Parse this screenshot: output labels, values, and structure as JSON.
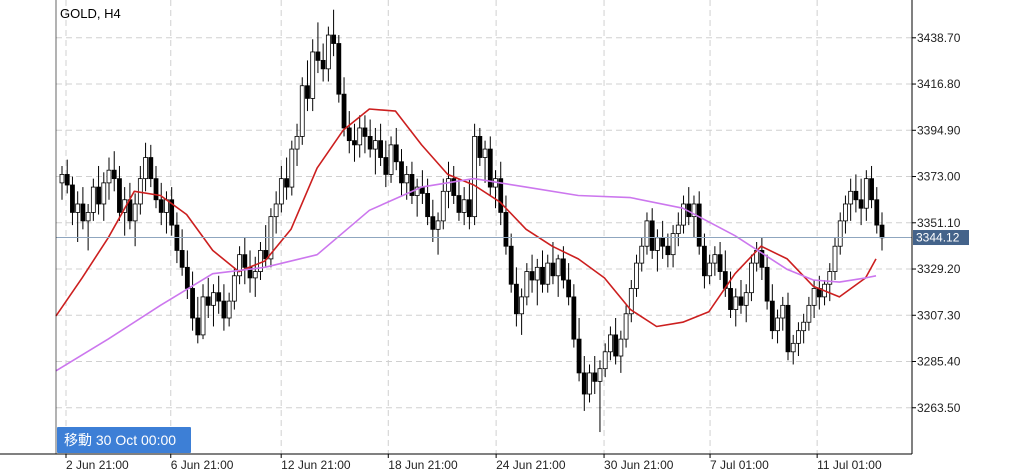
{
  "symbol_label": "GOLD, H4",
  "goto_button": "移動 30 Oct 00:00",
  "colors": {
    "bull": "#ffffff",
    "bear": "#000000",
    "ma_fast": "#cc1f1f",
    "ma_slow": "#cc77ee",
    "grid": "#d0d0d0",
    "current_line": "#8fa6bf",
    "price_badge": "#44638a",
    "goto_button": "#3d7fd6"
  },
  "chart_data": {
    "type": "candlestick",
    "title": "GOLD, H4",
    "grid": true,
    "ylim": [
      3241.6,
      3456.6
    ],
    "y_ticks": [
      "3438.70",
      "3416.80",
      "3394.90",
      "3373.00",
      "3351.10",
      "3329.20",
      "3307.30",
      "3285.40",
      "3263.50"
    ],
    "x_ticks": [
      "2 Jun 21:00",
      "6 Jun 21:00",
      "12 Jun 21:00",
      "18 Jun 21:00",
      "24 Jun 21:00",
      "30 Jun 21:00",
      "7 Jul 01:00",
      "11 Jul 01:00"
    ],
    "current_price": "3344.12",
    "candles": [
      [
        3370,
        3378,
        3362,
        3374
      ],
      [
        3374,
        3381,
        3365,
        3369
      ],
      [
        3369,
        3373,
        3350,
        3356
      ],
      [
        3356,
        3366,
        3342,
        3360
      ],
      [
        3360,
        3368,
        3348,
        3352
      ],
      [
        3352,
        3360,
        3338,
        3356
      ],
      [
        3356,
        3372,
        3352,
        3368
      ],
      [
        3368,
        3378,
        3355,
        3360
      ],
      [
        3360,
        3375,
        3352,
        3370
      ],
      [
        3370,
        3382,
        3362,
        3376
      ],
      [
        3376,
        3385,
        3366,
        3372
      ],
      [
        3372,
        3378,
        3352,
        3356
      ],
      [
        3356,
        3368,
        3345,
        3362
      ],
      [
        3362,
        3370,
        3348,
        3352
      ],
      [
        3352,
        3365,
        3340,
        3360
      ],
      [
        3360,
        3378,
        3355,
        3372
      ],
      [
        3372,
        3389,
        3366,
        3382
      ],
      [
        3382,
        3388,
        3368,
        3372
      ],
      [
        3372,
        3378,
        3358,
        3362
      ],
      [
        3362,
        3370,
        3350,
        3356
      ],
      [
        3356,
        3366,
        3346,
        3362
      ],
      [
        3362,
        3368,
        3345,
        3350
      ],
      [
        3350,
        3356,
        3332,
        3338
      ],
      [
        3338,
        3348,
        3326,
        3330
      ],
      [
        3330,
        3338,
        3315,
        3320
      ],
      [
        3320,
        3328,
        3300,
        3306
      ],
      [
        3306,
        3316,
        3294,
        3298
      ],
      [
        3298,
        3322,
        3296,
        3316
      ],
      [
        3316,
        3325,
        3306,
        3312
      ],
      [
        3312,
        3322,
        3302,
        3318
      ],
      [
        3318,
        3326,
        3308,
        3314
      ],
      [
        3314,
        3322,
        3300,
        3306
      ],
      [
        3306,
        3318,
        3302,
        3314
      ],
      [
        3314,
        3330,
        3310,
        3326
      ],
      [
        3326,
        3340,
        3322,
        3336
      ],
      [
        3336,
        3344,
        3322,
        3330
      ],
      [
        3330,
        3338,
        3318,
        3325
      ],
      [
        3325,
        3335,
        3316,
        3328
      ],
      [
        3328,
        3342,
        3324,
        3338
      ],
      [
        3338,
        3350,
        3330,
        3334
      ],
      [
        3334,
        3358,
        3330,
        3354
      ],
      [
        3354,
        3366,
        3346,
        3360
      ],
      [
        3360,
        3378,
        3356,
        3372
      ],
      [
        3372,
        3382,
        3362,
        3368
      ],
      [
        3368,
        3390,
        3364,
        3386
      ],
      [
        3386,
        3398,
        3378,
        3392
      ],
      [
        3392,
        3420,
        3388,
        3416
      ],
      [
        3416,
        3428,
        3404,
        3410
      ],
      [
        3410,
        3438,
        3404,
        3432
      ],
      [
        3432,
        3446,
        3422,
        3428
      ],
      [
        3428,
        3436,
        3418,
        3424
      ],
      [
        3424,
        3444,
        3418,
        3440
      ],
      [
        3440,
        3452,
        3430,
        3436
      ],
      [
        3436,
        3440,
        3408,
        3412
      ],
      [
        3412,
        3420,
        3392,
        3396
      ],
      [
        3396,
        3404,
        3384,
        3390
      ],
      [
        3390,
        3398,
        3380,
        3388
      ],
      [
        3388,
        3402,
        3382,
        3396
      ],
      [
        3396,
        3402,
        3384,
        3392
      ],
      [
        3392,
        3400,
        3382,
        3386
      ],
      [
        3386,
        3396,
        3374,
        3390
      ],
      [
        3390,
        3398,
        3378,
        3382
      ],
      [
        3382,
        3390,
        3368,
        3374
      ],
      [
        3374,
        3392,
        3370,
        3388
      ],
      [
        3388,
        3396,
        3376,
        3380
      ],
      [
        3380,
        3386,
        3364,
        3370
      ],
      [
        3370,
        3378,
        3362,
        3374
      ],
      [
        3374,
        3380,
        3360,
        3364
      ],
      [
        3364,
        3372,
        3354,
        3368
      ],
      [
        3368,
        3376,
        3360,
        3365
      ],
      [
        3365,
        3372,
        3350,
        3354
      ],
      [
        3354,
        3362,
        3342,
        3348
      ],
      [
        3348,
        3356,
        3336,
        3352
      ],
      [
        3352,
        3372,
        3348,
        3366
      ],
      [
        3366,
        3380,
        3358,
        3372
      ],
      [
        3372,
        3378,
        3360,
        3364
      ],
      [
        3364,
        3372,
        3352,
        3356
      ],
      [
        3356,
        3368,
        3350,
        3362
      ],
      [
        3362,
        3372,
        3348,
        3354
      ],
      [
        3354,
        3398,
        3350,
        3392
      ],
      [
        3392,
        3396,
        3378,
        3382
      ],
      [
        3382,
        3390,
        3370,
        3386
      ],
      [
        3386,
        3392,
        3364,
        3368
      ],
      [
        3368,
        3376,
        3358,
        3372
      ],
      [
        3372,
        3380,
        3350,
        3356
      ],
      [
        3356,
        3364,
        3336,
        3340
      ],
      [
        3340,
        3346,
        3318,
        3322
      ],
      [
        3322,
        3330,
        3302,
        3308
      ],
      [
        3308,
        3320,
        3298,
        3316
      ],
      [
        3316,
        3332,
        3312,
        3328
      ],
      [
        3328,
        3336,
        3318,
        3324
      ],
      [
        3324,
        3334,
        3312,
        3330
      ],
      [
        3330,
        3338,
        3318,
        3322
      ],
      [
        3322,
        3336,
        3318,
        3332
      ],
      [
        3332,
        3342,
        3322,
        3326
      ],
      [
        3326,
        3336,
        3316,
        3334
      ],
      [
        3334,
        3340,
        3320,
        3324
      ],
      [
        3324,
        3332,
        3312,
        3316
      ],
      [
        3316,
        3322,
        3292,
        3296
      ],
      [
        3296,
        3306,
        3276,
        3280
      ],
      [
        3280,
        3288,
        3262,
        3270
      ],
      [
        3270,
        3284,
        3266,
        3280
      ],
      [
        3280,
        3288,
        3270,
        3276
      ],
      [
        3276,
        3286,
        3252,
        3282
      ],
      [
        3282,
        3294,
        3278,
        3290
      ],
      [
        3290,
        3302,
        3286,
        3298
      ],
      [
        3298,
        3306,
        3284,
        3288
      ],
      [
        3288,
        3300,
        3280,
        3296
      ],
      [
        3296,
        3312,
        3292,
        3308
      ],
      [
        3308,
        3324,
        3304,
        3320
      ],
      [
        3320,
        3336,
        3316,
        3332
      ],
      [
        3332,
        3344,
        3328,
        3340
      ],
      [
        3340,
        3356,
        3336,
        3352
      ],
      [
        3352,
        3358,
        3334,
        3338
      ],
      [
        3338,
        3348,
        3328,
        3344
      ],
      [
        3344,
        3352,
        3334,
        3340
      ],
      [
        3340,
        3346,
        3330,
        3336
      ],
      [
        3336,
        3350,
        3330,
        3346
      ],
      [
        3346,
        3356,
        3340,
        3350
      ],
      [
        3350,
        3364,
        3346,
        3360
      ],
      [
        3360,
        3368,
        3350,
        3354
      ],
      [
        3354,
        3364,
        3344,
        3360
      ],
      [
        3360,
        3366,
        3336,
        3340
      ],
      [
        3340,
        3346,
        3320,
        3326
      ],
      [
        3326,
        3336,
        3322,
        3332
      ],
      [
        3332,
        3340,
        3326,
        3336
      ],
      [
        3336,
        3342,
        3324,
        3328
      ],
      [
        3328,
        3338,
        3316,
        3320
      ],
      [
        3320,
        3328,
        3306,
        3310
      ],
      [
        3310,
        3320,
        3302,
        3316
      ],
      [
        3316,
        3324,
        3308,
        3312
      ],
      [
        3312,
        3322,
        3304,
        3318
      ],
      [
        3318,
        3336,
        3314,
        3332
      ],
      [
        3332,
        3342,
        3328,
        3338
      ],
      [
        3338,
        3344,
        3324,
        3330
      ],
      [
        3330,
        3336,
        3310,
        3314
      ],
      [
        3314,
        3322,
        3296,
        3300
      ],
      [
        3300,
        3310,
        3294,
        3306
      ],
      [
        3306,
        3316,
        3300,
        3312
      ],
      [
        3312,
        3318,
        3286,
        3290
      ],
      [
        3290,
        3298,
        3284,
        3294
      ],
      [
        3294,
        3304,
        3288,
        3300
      ],
      [
        3300,
        3308,
        3294,
        3304
      ],
      [
        3304,
        3316,
        3300,
        3312
      ],
      [
        3312,
        3324,
        3306,
        3320
      ],
      [
        3320,
        3326,
        3310,
        3316
      ],
      [
        3316,
        3324,
        3312,
        3322
      ],
      [
        3322,
        3332,
        3314,
        3328
      ],
      [
        3328,
        3344,
        3324,
        3340
      ],
      [
        3340,
        3356,
        3336,
        3352
      ],
      [
        3352,
        3364,
        3346,
        3360
      ],
      [
        3360,
        3372,
        3352,
        3366
      ],
      [
        3366,
        3374,
        3356,
        3362
      ],
      [
        3362,
        3372,
        3350,
        3358
      ],
      [
        3358,
        3376,
        3352,
        3372
      ],
      [
        3372,
        3378,
        3358,
        3362
      ],
      [
        3362,
        3368,
        3346,
        3350
      ],
      [
        3350,
        3356,
        3338,
        3344
      ]
    ],
    "series": [
      {
        "name": "",
        "color": "#cc1f1f",
        "x": [
          0,
          5,
          10,
          15,
          20,
          25,
          30,
          35,
          40,
          45,
          50,
          55,
          60,
          65,
          70,
          75,
          80,
          85,
          90,
          95,
          100,
          105,
          110,
          115,
          120,
          125,
          130,
          135,
          140,
          145,
          150,
          155,
          157
        ],
        "values": [
          3307,
          3325,
          3344,
          3366,
          3364,
          3355,
          3338,
          3328,
          3333,
          3348,
          3377,
          3395,
          3405,
          3404,
          3388,
          3374,
          3369,
          3361,
          3348,
          3340,
          3334,
          3325,
          3310,
          3302,
          3304,
          3309,
          3327,
          3340,
          3334,
          3321,
          3316,
          3325,
          3334
        ]
      },
      {
        "name": "",
        "color": "#cc77ee",
        "x": [
          0,
          10,
          20,
          30,
          40,
          50,
          60,
          70,
          80,
          90,
          100,
          110,
          120,
          130,
          140,
          145,
          150,
          155,
          157
        ],
        "values": [
          3281,
          3296,
          3312,
          3327,
          3330,
          3336,
          3357,
          3368,
          3372,
          3368,
          3364,
          3363,
          3358,
          3345,
          3329,
          3324,
          3323,
          3325,
          3326
        ]
      }
    ]
  }
}
